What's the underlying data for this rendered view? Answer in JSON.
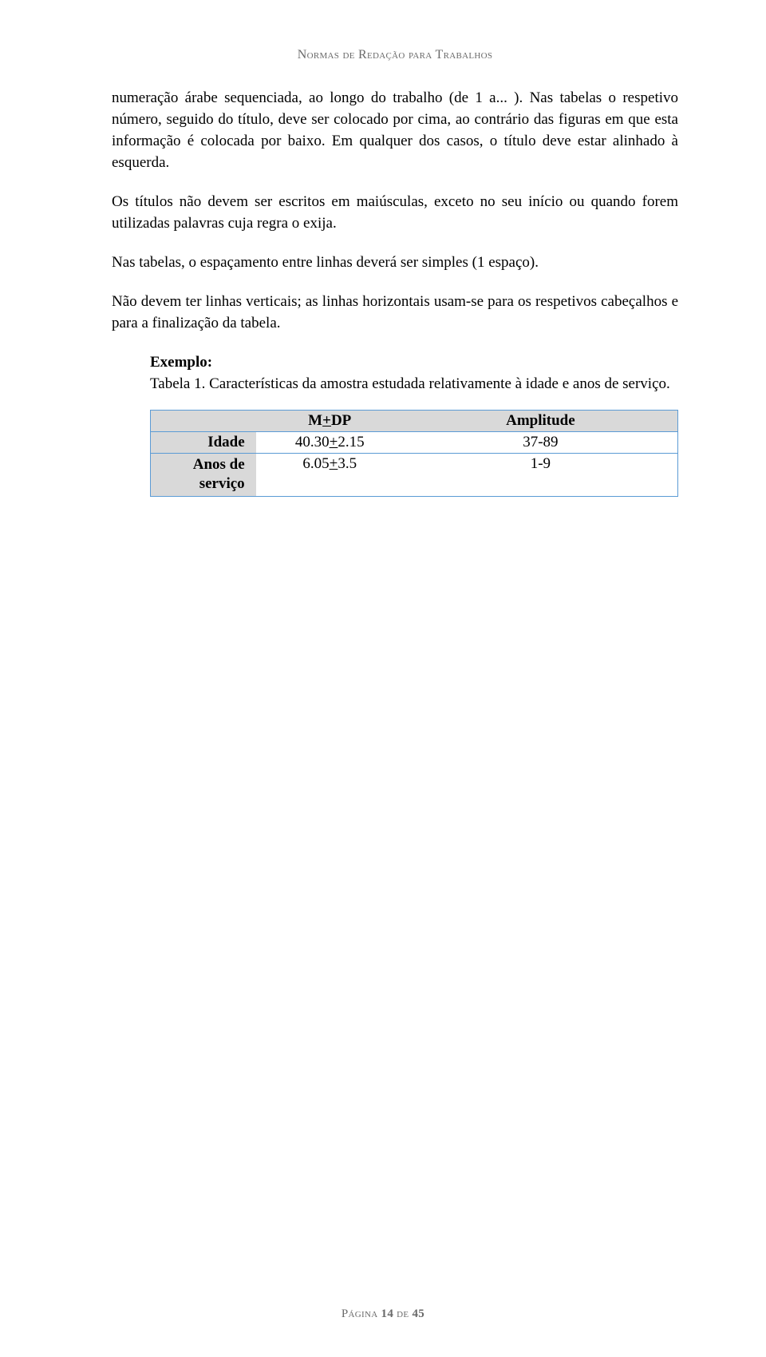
{
  "header": "Normas de Redação para Trabalhos",
  "paragraphs": {
    "p1": "numeração árabe sequenciada, ao longo do trabalho (de 1 a... ). Nas tabelas o respetivo número, seguido do título, deve ser colocado por cima, ao contrário das figuras em que esta informação é colocada por baixo. Em qualquer dos casos, o título deve estar alinhado à esquerda.",
    "p2": "Os títulos não devem ser escritos em maiúsculas, exceto no seu início ou quando forem utilizadas palavras cuja regra o exija.",
    "p3": "Nas tabelas, o espaçamento entre linhas deverá ser simples (1 espaço).",
    "p4": "Não devem ter linhas verticais; as linhas horizontais usam-se para os respetivos cabeçalhos e para a finalização da tabela."
  },
  "example": {
    "label": "Exemplo:",
    "caption": "Tabela 1. Características da amostra estudada relativamente à idade e anos de serviço."
  },
  "table": {
    "headers": {
      "col1": "",
      "col2_pre": "M",
      "col2_mid": "+",
      "col2_post": "DP",
      "col3": "Amplitude"
    },
    "rows": [
      {
        "label": "Idade",
        "mdp_a": "40.30",
        "mdp_pm": "+",
        "mdp_b": "2.15",
        "amp": "37-89"
      },
      {
        "label_line1": "Anos de",
        "label_line2": "serviço",
        "mdp_a": "6.05",
        "mdp_pm": "+",
        "mdp_b": "3.5",
        "amp": "1-9"
      }
    ],
    "border_color": "#5b9bd5",
    "header_bg": "#d9d9d9"
  },
  "footer": {
    "pre": "Página ",
    "page": "14",
    "mid": " de ",
    "total": "45"
  }
}
